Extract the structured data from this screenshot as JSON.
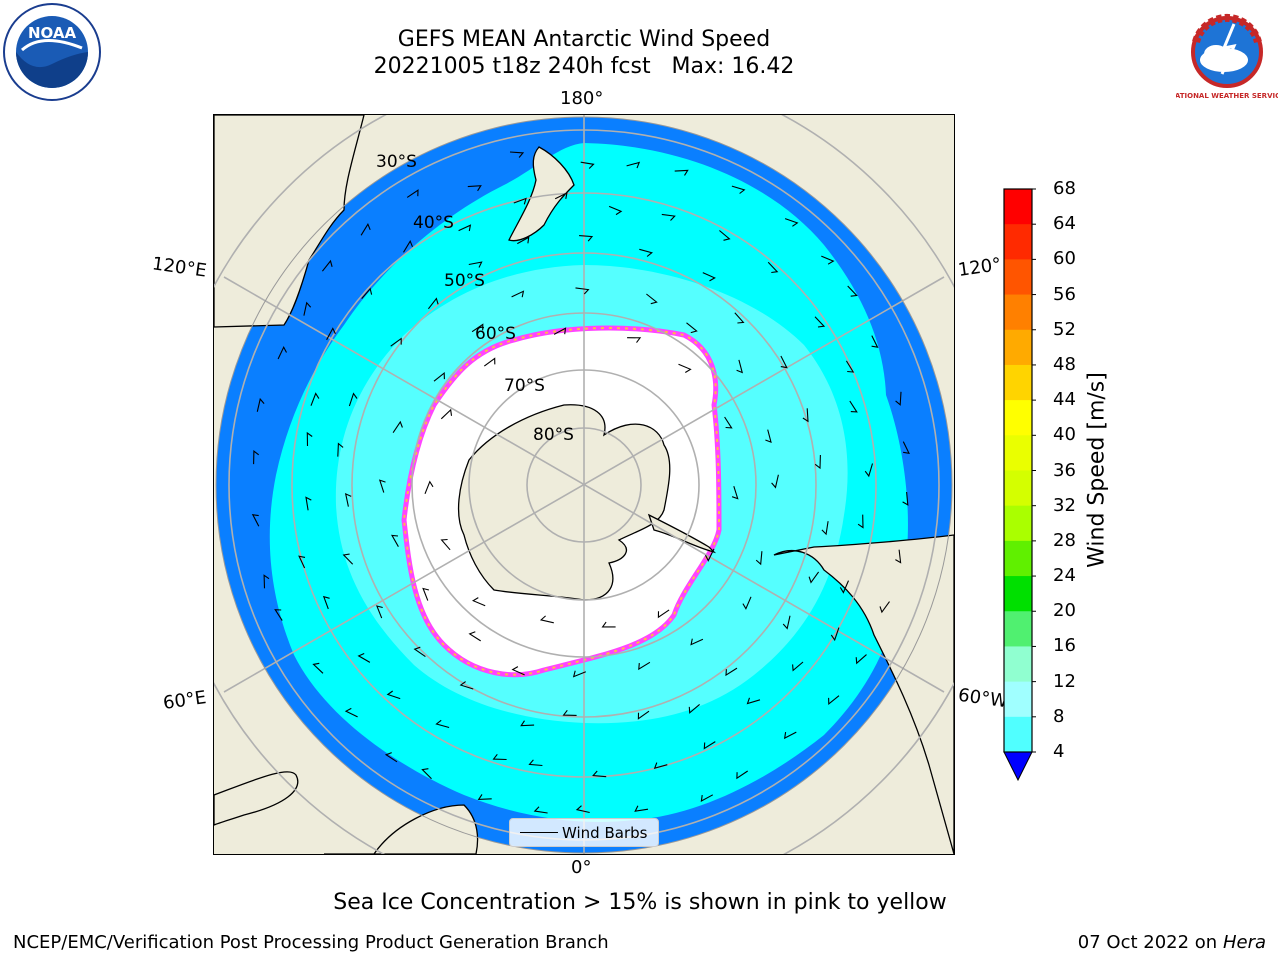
{
  "title_line1": "GEFS MEAN Antarctic Wind Speed",
  "title_line2": "20221005 t18z 240h fcst   Max: 16.42",
  "lon_labels": {
    "top": "180°",
    "bottom": "0°",
    "left_upper": "120°E",
    "left_lower": "60°E",
    "right_upper": "120°",
    "right_lower": "60°W"
  },
  "lat_labels": [
    "30°S",
    "40°S",
    "50°S",
    "60°S",
    "70°S",
    "80°S"
  ],
  "legend_label": "Wind Barbs",
  "colorbar": {
    "title": "Wind Speed [m/s]",
    "ticks": [
      "68",
      "64",
      "60",
      "56",
      "52",
      "48",
      "44",
      "40",
      "36",
      "32",
      "28",
      "24",
      "20",
      "16",
      "12",
      "8",
      "4"
    ],
    "colors": [
      "#ff0000",
      "#ff2a00",
      "#ff5500",
      "#ff8000",
      "#ffaa00",
      "#ffd400",
      "#ffff00",
      "#eaff00",
      "#d4ff00",
      "#aaff00",
      "#60f000",
      "#00e000",
      "#50f070",
      "#90ffd0",
      "#a0ffff",
      "#50ffff",
      "#00ffff",
      "#0a7fff",
      "#0000ff"
    ],
    "under_color": "#0000ff"
  },
  "note": "Sea Ice Concentration > 15% is shown in pink to yellow",
  "footer_left": "NCEP/EMC/Verification Post Processing Product Generation Branch",
  "footer_date": "07 Oct 2022 on",
  "footer_machine": "Hera",
  "logos": {
    "left": "NOAA",
    "right": "NATIONAL WEATHER SERVICE"
  },
  "map_colors": {
    "land": "#eeecdb",
    "ocean_low": "#0a7fff",
    "ocean_mid": "#00ffff",
    "ocean_high": "#55ffff",
    "sea_ice": "#ffffff",
    "ice_edge_pink": "#ff44ff",
    "ice_edge_yellow": "#ffbb44"
  }
}
